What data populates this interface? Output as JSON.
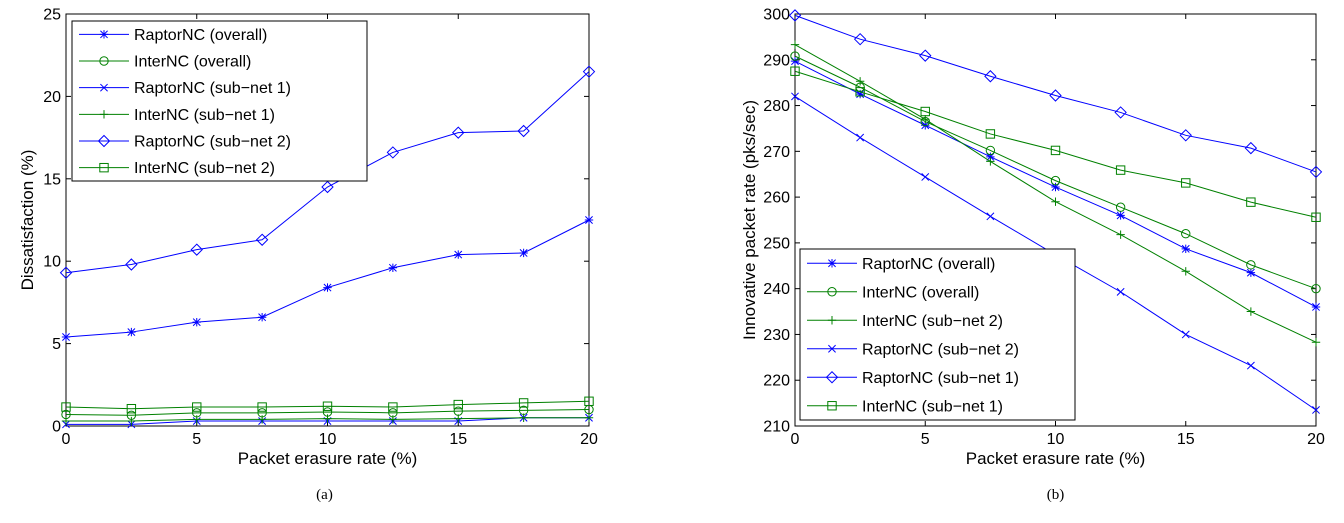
{
  "chart_data": [
    {
      "type": "line",
      "caption": "(a)",
      "xlabel": "Packet erasure rate (%)",
      "ylabel": "Dissatisfaction (%)",
      "xlim": [
        0,
        20
      ],
      "ylim": [
        0,
        25
      ],
      "xticks": [
        0,
        5,
        10,
        15,
        20
      ],
      "yticks": [
        0,
        5,
        10,
        15,
        20,
        25
      ],
      "grid": false,
      "legend_position": "top-left",
      "x": [
        0,
        2.5,
        5,
        7.5,
        10,
        12.5,
        15,
        17.5,
        20
      ],
      "series": [
        {
          "name": "RaptorNC (overall)",
          "color": "#0000ff",
          "marker": "star",
          "values": [
            5.4,
            5.7,
            6.3,
            6.6,
            8.4,
            9.6,
            10.4,
            10.5,
            12.5
          ]
        },
        {
          "name": "InterNC (overall)",
          "color": "#008000",
          "marker": "circle",
          "values": [
            0.7,
            0.65,
            0.8,
            0.8,
            0.85,
            0.8,
            0.9,
            0.95,
            1.0
          ]
        },
        {
          "name": "RaptorNC (sub−net 1)",
          "color": "#0000ff",
          "marker": "x",
          "values": [
            0.1,
            0.1,
            0.3,
            0.3,
            0.3,
            0.3,
            0.3,
            0.5,
            0.5
          ]
        },
        {
          "name": "InterNC (sub−net 1)",
          "color": "#008000",
          "marker": "plus",
          "values": [
            0.3,
            0.3,
            0.4,
            0.4,
            0.45,
            0.4,
            0.45,
            0.5,
            0.5
          ]
        },
        {
          "name": "RaptorNC (sub−net 2)",
          "color": "#0000ff",
          "marker": "diamond",
          "values": [
            9.3,
            9.8,
            10.7,
            11.3,
            14.5,
            16.6,
            17.8,
            17.9,
            21.5
          ]
        },
        {
          "name": "InterNC (sub−net 2)",
          "color": "#008000",
          "marker": "square",
          "values": [
            1.15,
            1.05,
            1.15,
            1.15,
            1.2,
            1.15,
            1.3,
            1.4,
            1.5
          ]
        }
      ]
    },
    {
      "type": "line",
      "caption": "(b)",
      "xlabel": "Packet erasure rate (%)",
      "ylabel": "Innovative packet rate (pks/sec)",
      "xlim": [
        0,
        20
      ],
      "ylim": [
        210,
        300
      ],
      "xticks": [
        0,
        5,
        10,
        15,
        20
      ],
      "yticks": [
        210,
        220,
        230,
        240,
        250,
        260,
        270,
        280,
        290,
        300
      ],
      "grid": false,
      "legend_position": "bottom-left",
      "x": [
        0,
        2.5,
        5,
        7.5,
        10,
        12.5,
        15,
        17.5,
        20
      ],
      "series": [
        {
          "name": "RaptorNC (overall)",
          "color": "#0000ff",
          "marker": "star",
          "values": [
            289.7,
            282.5,
            275.7,
            268.8,
            262.2,
            256,
            248.7,
            243.5,
            236
          ]
        },
        {
          "name": "InterNC (overall)",
          "color": "#008000",
          "marker": "circle",
          "values": [
            290.8,
            284,
            276.5,
            270.2,
            263.6,
            257.8,
            252,
            245.2,
            240
          ]
        },
        {
          "name": "InterNC (sub−net 2)",
          "color": "#008000",
          "marker": "plus",
          "values": [
            293.3,
            285.3,
            277,
            267.8,
            259,
            251.8,
            243.8,
            235,
            228.3
          ]
        },
        {
          "name": "RaptorNC (sub−net 2)",
          "color": "#0000ff",
          "marker": "x",
          "values": [
            282,
            273,
            264.4,
            255.8,
            247.4,
            239.3,
            230,
            223.2,
            213.5
          ]
        },
        {
          "name": "RaptorNC (sub−net 1)",
          "color": "#0000ff",
          "marker": "diamond",
          "values": [
            299.7,
            294.5,
            290.9,
            286.4,
            282.2,
            278.5,
            273.5,
            270.7,
            265.5
          ]
        },
        {
          "name": "InterNC (sub−net 1)",
          "color": "#008000",
          "marker": "square",
          "values": [
            287.5,
            283,
            278.7,
            273.8,
            270.2,
            265.9,
            263.1,
            258.9,
            255.6
          ]
        }
      ]
    }
  ]
}
